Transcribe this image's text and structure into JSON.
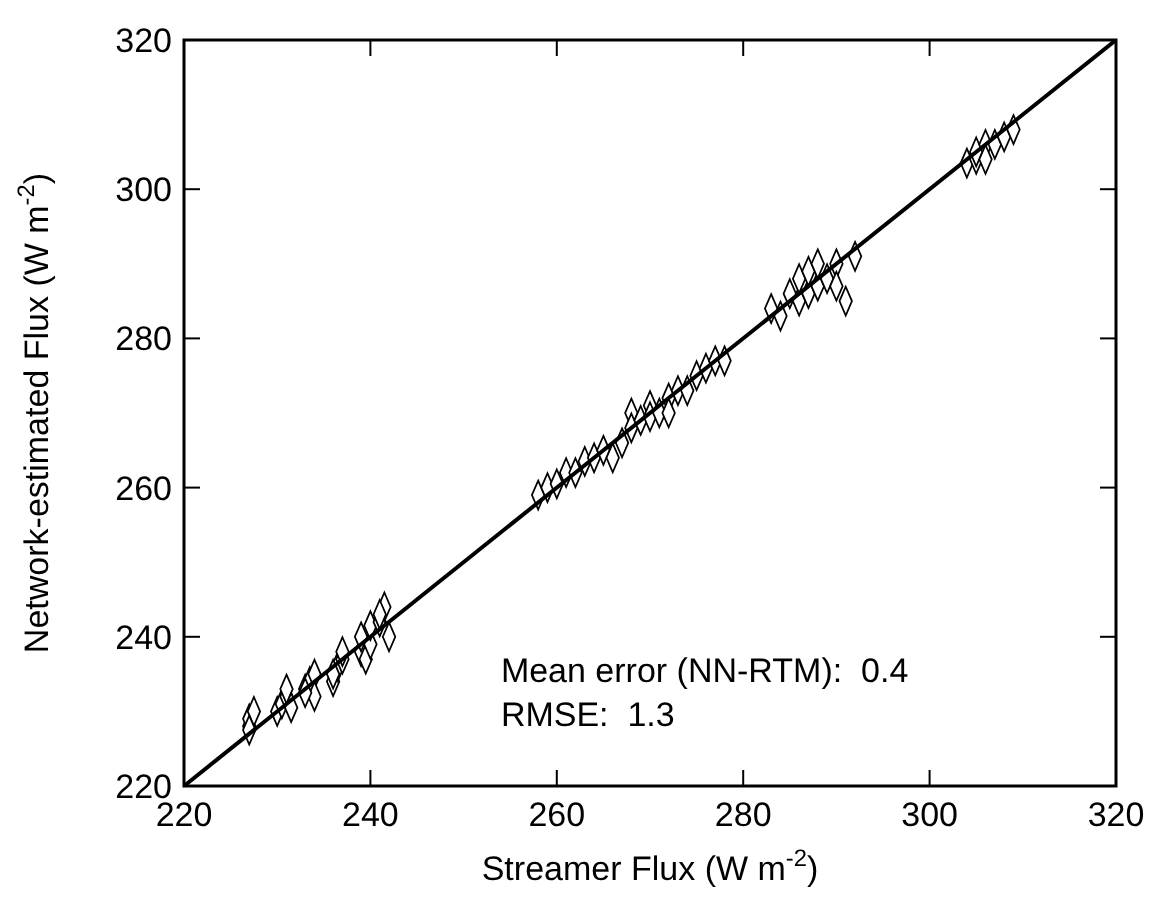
{
  "chart_data": {
    "type": "scatter",
    "xlabel": "Streamer Flux (W m$^{-2}$)",
    "ylabel": "Network-estimated Flux (W m$^{-2}$)",
    "xlim": [
      220,
      320
    ],
    "ylim": [
      220,
      320
    ],
    "xticks": [
      220,
      240,
      260,
      280,
      300,
      320
    ],
    "yticks": [
      220,
      240,
      260,
      280,
      300,
      320
    ],
    "grid": false,
    "marker": "diamond",
    "annotations": [
      "Mean error (NN-RTM):  0.4",
      "RMSE:  1.3"
    ],
    "series": [
      {
        "color": "#000000",
        "x": [
          227,
          227,
          227.5,
          227,
          230,
          230.5,
          231,
          231,
          231.5,
          233,
          233.5,
          234,
          234,
          233,
          236,
          236.5,
          237,
          236,
          237,
          239,
          239,
          239.5,
          240,
          240,
          241,
          241.5,
          242,
          241,
          258,
          259,
          260,
          261,
          262,
          263,
          264,
          265,
          266,
          267,
          268,
          268,
          269,
          270,
          270,
          271,
          272,
          272,
          273,
          274,
          275,
          276,
          277,
          278,
          283,
          284,
          285,
          286,
          286,
          287,
          287,
          288,
          288,
          289,
          290,
          290,
          291,
          292,
          304,
          305,
          305,
          306,
          306,
          307,
          308,
          309
        ],
        "values": [
          228,
          229,
          230,
          227.5,
          230,
          231,
          232,
          233,
          230.5,
          233,
          234,
          235,
          232,
          232.5,
          234,
          236,
          237,
          235,
          238,
          238,
          240,
          237,
          239,
          241.5,
          242,
          244,
          240,
          243,
          259,
          260,
          260.5,
          262,
          262,
          263.5,
          264,
          265,
          264,
          266,
          270,
          268,
          269,
          271,
          269.5,
          270,
          272,
          270,
          273,
          273,
          275,
          276,
          277,
          277,
          284,
          283,
          286,
          285,
          288,
          286,
          289,
          287,
          290,
          288,
          290,
          287,
          285,
          291,
          303.5,
          304,
          305,
          306,
          304,
          306,
          307,
          308
        ]
      },
      {
        "type": "line",
        "color": "#000000",
        "marker": "none",
        "x": [
          220,
          320
        ],
        "values": [
          220,
          320
        ]
      }
    ]
  }
}
